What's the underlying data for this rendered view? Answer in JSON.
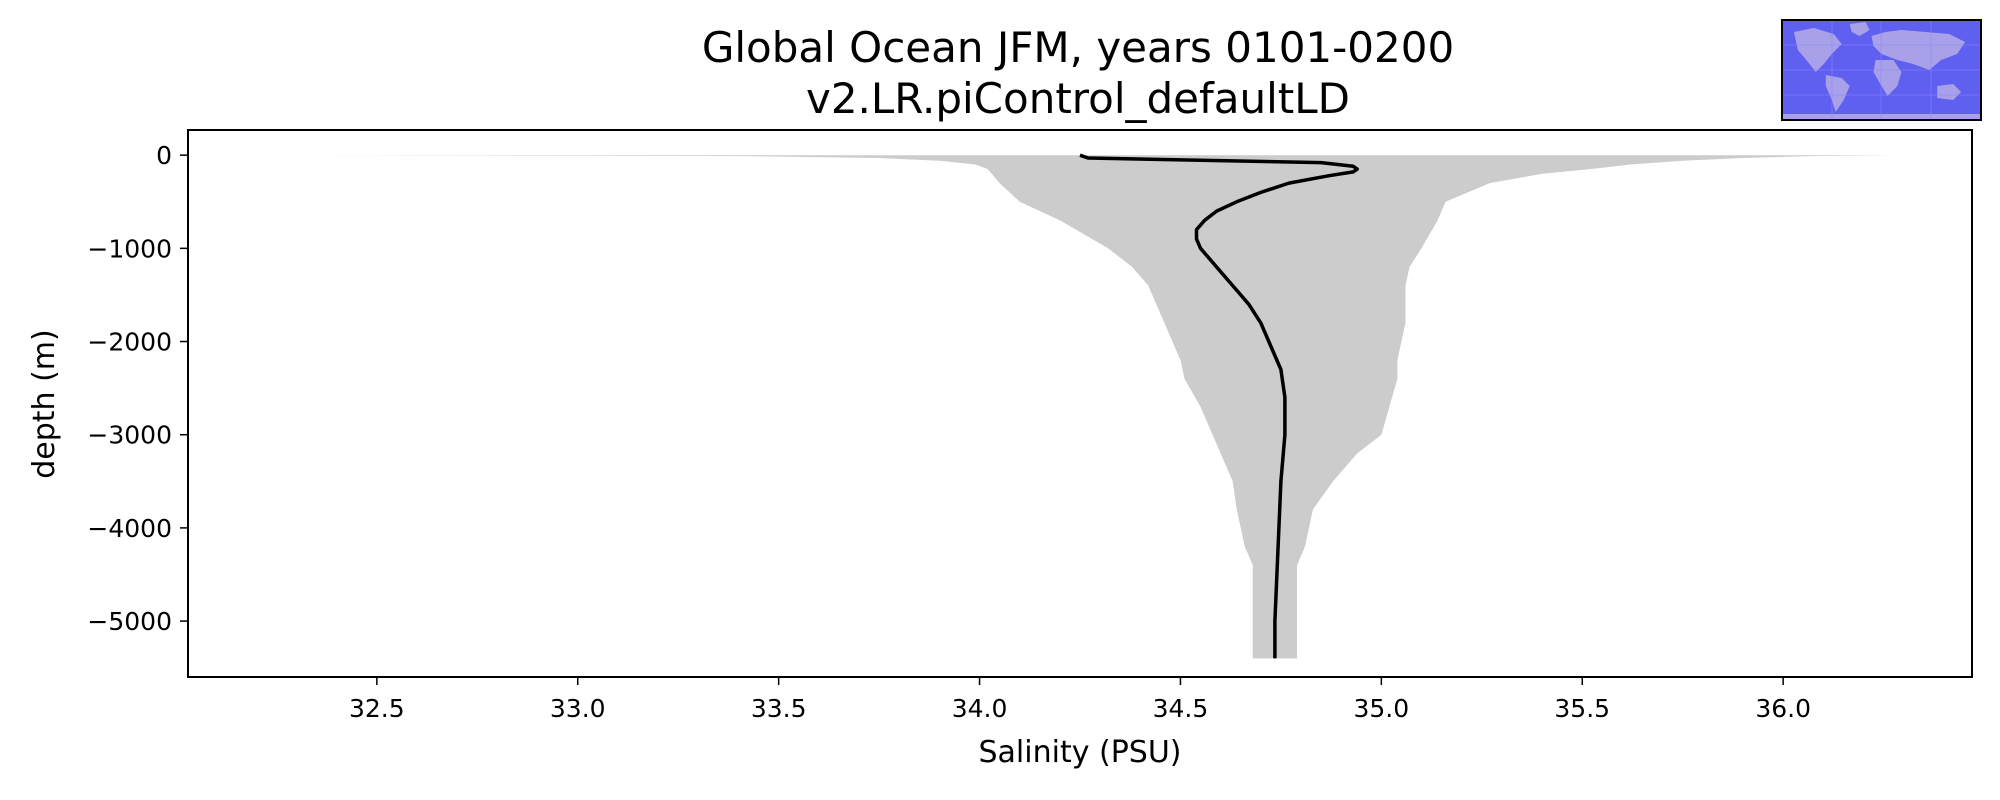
{
  "chart_data": {
    "type": "area",
    "title": [
      "Global Ocean JFM, years 0101-0200",
      "v2.LR.piControl_defaultLD"
    ],
    "xlabel": "Salinity (PSU)",
    "ylabel": "depth (m)",
    "xlim": [
      32.03,
      36.47
    ],
    "ylim": [
      -5600,
      270
    ],
    "xticks": [
      32.5,
      33.0,
      33.5,
      34.0,
      34.5,
      35.0,
      35.5,
      36.0
    ],
    "xtick_labels": [
      "32.5",
      "33.0",
      "33.5",
      "34.0",
      "34.5",
      "35.0",
      "35.5",
      "36.0"
    ],
    "yticks": [
      0,
      -1000,
      -2000,
      -3000,
      -4000,
      -5000
    ],
    "ytick_labels": [
      "0",
      "−1000",
      "−2000",
      "−3000",
      "−4000",
      "−5000"
    ],
    "grid": false,
    "series": [
      {
        "kind": "range-band",
        "color": "#cccccc",
        "depth": [
          0,
          -10,
          -30,
          -60,
          -100,
          -150,
          -200,
          -300,
          -500,
          -700,
          -1000,
          -1200,
          -1400,
          -1600,
          -1800,
          -2000,
          -2200,
          -2400,
          -2700,
          -3000,
          -3200,
          -3500,
          -3800,
          -4000,
          -4200,
          -4400,
          -5000,
          -5400
        ],
        "min": [
          32.23,
          33.4,
          33.75,
          33.9,
          33.99,
          34.02,
          34.03,
          34.05,
          34.1,
          34.2,
          34.32,
          34.38,
          34.42,
          34.44,
          34.46,
          34.48,
          34.5,
          34.51,
          34.55,
          34.58,
          34.6,
          34.63,
          34.64,
          34.65,
          34.66,
          34.68,
          34.68,
          34.68
        ],
        "max": [
          36.28,
          36.07,
          35.9,
          35.75,
          35.62,
          35.52,
          35.4,
          35.27,
          35.16,
          35.14,
          35.1,
          35.07,
          35.06,
          35.06,
          35.06,
          35.05,
          35.04,
          35.04,
          35.02,
          35.0,
          34.94,
          34.88,
          34.83,
          34.82,
          34.81,
          34.79,
          34.79,
          34.79
        ]
      },
      {
        "kind": "profile-line",
        "color": "#000000",
        "depth": [
          0,
          -30,
          -80,
          -120,
          -150,
          -180,
          -220,
          -300,
          -400,
          -500,
          -600,
          -700,
          -800,
          -900,
          -1000,
          -1100,
          -1200,
          -1300,
          -1400,
          -1500,
          -1600,
          -1800,
          -2000,
          -2300,
          -2600,
          -3000,
          -3500,
          -4000,
          -4500,
          -5000,
          -5400
        ],
        "salinity": [
          34.25,
          34.27,
          34.85,
          34.93,
          34.94,
          34.93,
          34.87,
          34.77,
          34.7,
          34.64,
          34.59,
          34.56,
          34.54,
          34.54,
          34.55,
          34.57,
          34.59,
          34.61,
          34.63,
          34.65,
          34.67,
          34.7,
          34.72,
          34.75,
          34.76,
          34.76,
          34.75,
          34.745,
          34.74,
          34.735,
          34.735
        ]
      }
    ]
  },
  "inset_map": {
    "ocean_color": "#6060f0",
    "land_color": "#a8a0e8"
  }
}
